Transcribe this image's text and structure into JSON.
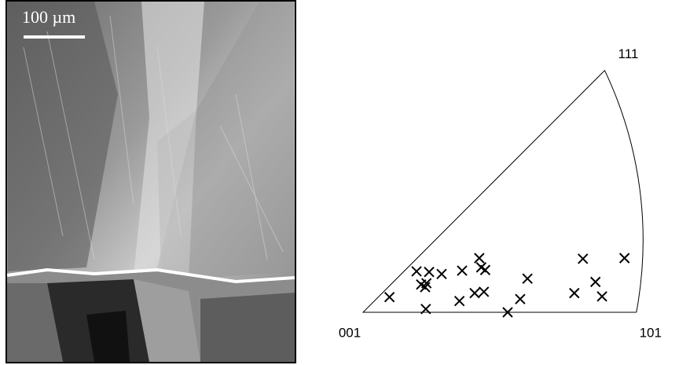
{
  "scale_bar": "100 µm",
  "chart_data": {
    "type": "scatter",
    "vertices": [
      {
        "label": "001",
        "x": 0,
        "y": 0
      },
      {
        "label": "101",
        "x": 0.414,
        "y": 0
      },
      {
        "label": "111",
        "x": 0.366,
        "y": 0.366
      }
    ],
    "x": [
      0.04,
      0.081,
      0.1,
      0.119,
      0.088,
      0.094,
      0.096,
      0.095,
      0.15,
      0.146,
      0.176,
      0.179,
      0.185,
      0.169,
      0.183,
      0.219,
      0.238,
      0.249,
      0.32,
      0.333,
      0.352,
      0.362,
      0.396
    ],
    "y": [
      0.023,
      0.062,
      0.061,
      0.058,
      0.042,
      0.038,
      0.044,
      0.005,
      0.063,
      0.017,
      0.082,
      0.068,
      0.064,
      0.029,
      0.031,
      0.0,
      0.02,
      0.051,
      0.029,
      0.081,
      0.046,
      0.024,
      0.082
    ],
    "color": "#000000"
  }
}
